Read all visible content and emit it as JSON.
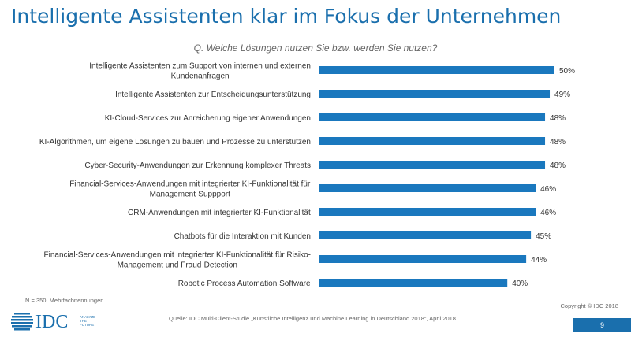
{
  "slide": {
    "title": "Intelligente Assistenten klar im Fokus der Unternehmen",
    "question": "Q. Welche Lösungen nutzen Sie bzw. werden Sie nutzen?",
    "note": "N = 350, Mehrfachnennungen",
    "source": "Quelle: IDC Multi-Client-Studie „Künstliche Intelligenz und Machine Learning in Deutschland 2018“, April 2018",
    "copyright": "Copyright © IDC 2018",
    "page_number": "9",
    "logo": {
      "text": "IDC",
      "tagline": [
        "ANALYZE",
        "THE",
        "FUTURE"
      ]
    }
  },
  "colors": {
    "accent": "#1a6fad",
    "bar": "#1a78be"
  },
  "chart_data": {
    "type": "bar",
    "orientation": "horizontal",
    "value_suffix": "%",
    "grid": false,
    "categories": [
      [
        "Intelligente Assistenten zum Support von internen und externen",
        "Kundenanfragen"
      ],
      [
        "Intelligente Assistenten zur Entscheidungsunterstützung"
      ],
      [
        "KI-Cloud-Services zur Anreicherung eigener Anwendungen"
      ],
      [
        "KI-Algorithmen, um eigene Lösungen zu bauen und Prozesse zu unterstützen"
      ],
      [
        "Cyber-Security-Anwendungen zur Erkennung komplexer Threats"
      ],
      [
        "Financial-Services-Anwendungen mit integrierter KI-Funktionalität für",
        "Management-Suppport"
      ],
      [
        "CRM-Anwendungen mit integrierter KI-Funktionalität"
      ],
      [
        "Chatbots für die Interaktion mit Kunden"
      ],
      [
        "Financial-Services-Anwendungen mit integrierter KI-Funktionalität für Risiko-",
        "Management und Fraud-Detection"
      ],
      [
        "Robotic Process Automation Software"
      ]
    ],
    "values": [
      50,
      49,
      48,
      48,
      48,
      46,
      46,
      45,
      44,
      40
    ],
    "xlim": [
      0,
      50
    ]
  }
}
